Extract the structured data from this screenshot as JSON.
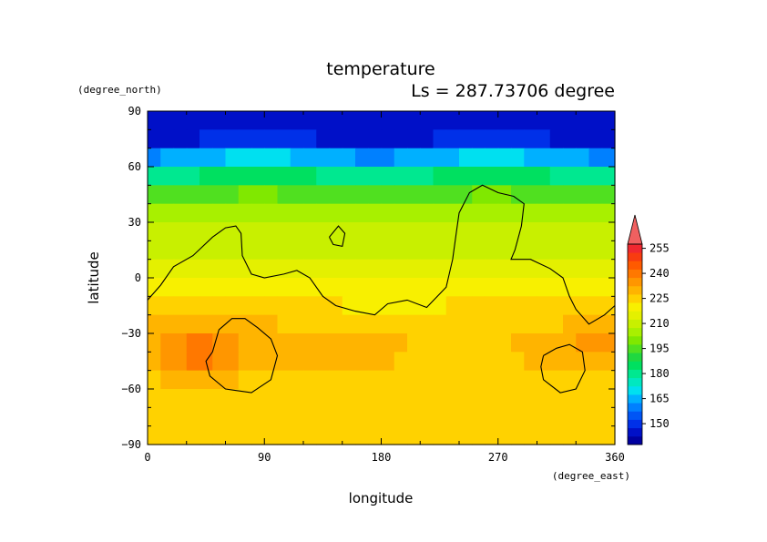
{
  "chart_data": {
    "type": "heatmap",
    "title": "temperature",
    "subtitle": "Ls = 287.73706 degree",
    "xlabel": "longitude",
    "ylabel": "latitude",
    "x_unit": "(degree_east)",
    "y_unit": "(degree_north)",
    "xlim": [
      0,
      360
    ],
    "ylim": [
      -90,
      90
    ],
    "x_ticks": [
      "0",
      "90",
      "180",
      "270",
      "360"
    ],
    "y_ticks": [
      "90",
      "60",
      "30",
      "0",
      "−30",
      "−60",
      "−90"
    ],
    "colorbar": {
      "labels": [
        "255",
        "240",
        "225",
        "210",
        "195",
        "180",
        "165",
        "150"
      ],
      "level_values": [
        140,
        145,
        150,
        155,
        160,
        165,
        170,
        175,
        180,
        185,
        190,
        195,
        200,
        205,
        210,
        215,
        220,
        225,
        230,
        235,
        240,
        245,
        250,
        255,
        260
      ],
      "colors": [
        "#0000a0",
        "#0010c8",
        "#0030e8",
        "#0055f5",
        "#0080ff",
        "#00b0ff",
        "#00e0f0",
        "#00e8c0",
        "#00e890",
        "#00e060",
        "#20d840",
        "#50e020",
        "#80e800",
        "#a8f000",
        "#c8f000",
        "#e4f000",
        "#f8f000",
        "#ffd200",
        "#ffb400",
        "#ff9600",
        "#ff7800",
        "#ff5a00",
        "#f83c10",
        "#f02830",
        "#f06060"
      ]
    },
    "latitudes": [
      85,
      75,
      65,
      55,
      45,
      35,
      25,
      15,
      5,
      -5,
      -15,
      -25,
      -35,
      -45,
      -55,
      -65,
      -75,
      -85
    ],
    "longitudes": [
      5,
      15,
      25,
      35,
      45,
      55,
      65,
      75,
      85,
      95,
      105,
      115,
      125,
      135,
      145,
      155,
      165,
      175,
      185,
      195,
      205,
      215,
      225,
      235,
      245,
      255,
      265,
      275,
      285,
      295,
      305,
      315,
      325,
      335,
      345,
      355
    ],
    "zonal_mean_temperature": [
      148,
      150,
      168,
      185,
      198,
      207,
      212,
      215,
      220,
      224,
      226,
      230,
      232,
      232,
      229,
      228,
      228,
      228
    ],
    "contour_series": [
      "coastline",
      "southern-basin-1",
      "southern-basin-2",
      "northern-island"
    ]
  }
}
